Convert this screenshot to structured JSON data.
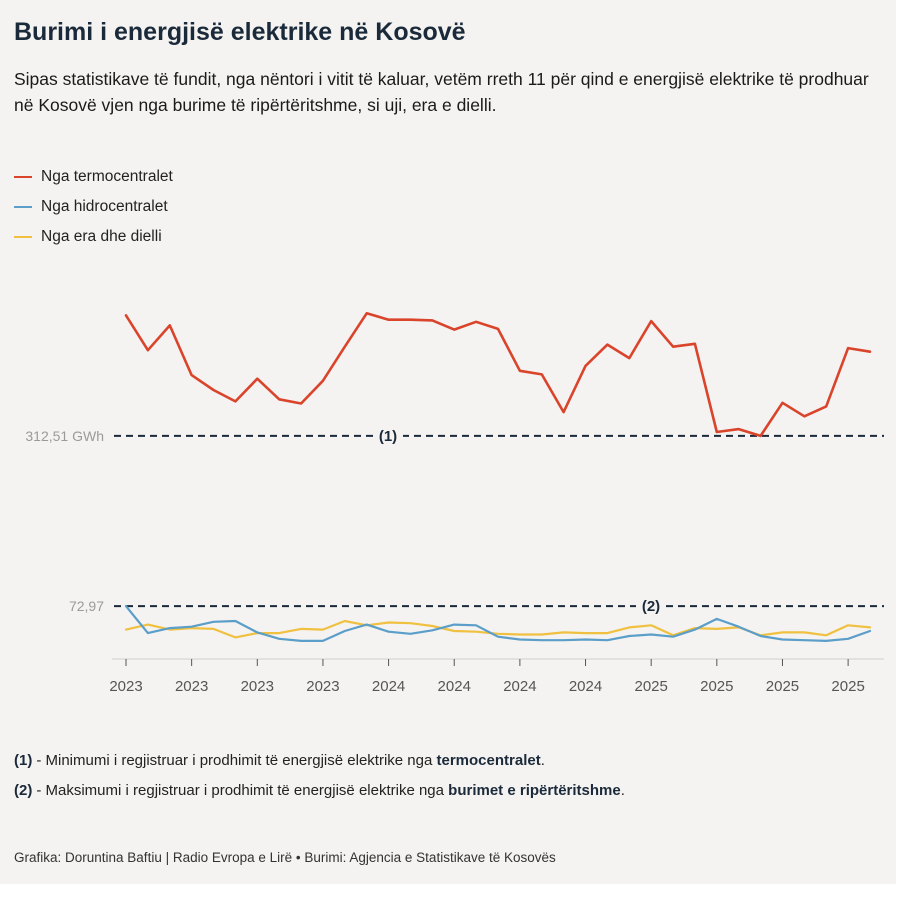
{
  "title": "Burimi i energjisë elektrike në Kosovë",
  "subtitle": "Sipas statistikave të fundit, nga nëntori i vitit të kaluar, vetëm rreth 11 për qind e energjisë elektrike të prodhuar në Kosovë vjen nga burime të ripërtëritshme, si uji, era e dielli.",
  "chart_data": {
    "type": "line",
    "unit": "GWh",
    "ylim": [
      0,
      650
    ],
    "x_tick_labels": [
      "2023",
      "2023",
      "2023",
      "2023",
      "2024",
      "2024",
      "2024",
      "2024",
      "2025",
      "2025",
      "2025",
      "2025"
    ],
    "series": [
      {
        "name": "Nga termocentralet",
        "color": "#d9442b",
        "values": [
          482,
          433,
          468,
          398,
          377,
          361,
          393,
          364,
          358,
          390,
          438,
          485,
          476,
          476,
          475,
          462,
          473,
          463,
          404,
          399,
          346,
          411,
          441,
          422,
          474,
          438,
          442,
          318,
          322,
          312.51,
          359,
          340,
          354,
          436,
          431
        ]
      },
      {
        "name": "Nga hidrocentralet",
        "color": "#5a9ec9",
        "values": [
          72.97,
          35,
          42,
          44,
          51,
          52,
          36,
          27,
          24,
          24,
          38,
          47,
          37,
          34,
          39,
          47,
          46,
          30,
          26,
          25,
          25,
          26,
          25,
          31,
          33,
          30,
          40,
          55,
          44,
          31,
          26,
          25,
          24,
          27,
          38
        ]
      },
      {
        "name": "Nga era dhe dielli",
        "color": "#f0c040",
        "values": [
          40,
          47,
          40,
          42,
          41,
          29,
          35,
          35,
          41,
          40,
          52,
          46,
          50,
          49,
          45,
          38,
          37,
          34,
          33,
          33,
          36,
          35,
          35,
          43,
          46,
          32,
          42,
          41,
          43,
          32,
          36,
          36,
          32,
          46,
          43
        ]
      }
    ],
    "reference_lines": [
      {
        "marker": "(1)",
        "value": 312.51,
        "label": "312,51 GWh"
      },
      {
        "marker": "(2)",
        "value": 72.97,
        "label": "72,97"
      }
    ]
  },
  "notes": [
    {
      "marker": "(1)",
      "text": " - Minimumi i regjistruar i prodhimit të energjisë elektrike nga ",
      "bold": "termocentralet",
      "end": "."
    },
    {
      "marker": "(2)",
      "text": " - Maksimumi i regjistruar i prodhimit të energjisë elektrike nga ",
      "bold": "burimet e ripërtëritshme",
      "end": "."
    }
  ],
  "credit": "Grafika: Doruntina Baftiu | Radio Evropa e Lirë • Burimi: Agjencia e Statistikave të Kosovës"
}
